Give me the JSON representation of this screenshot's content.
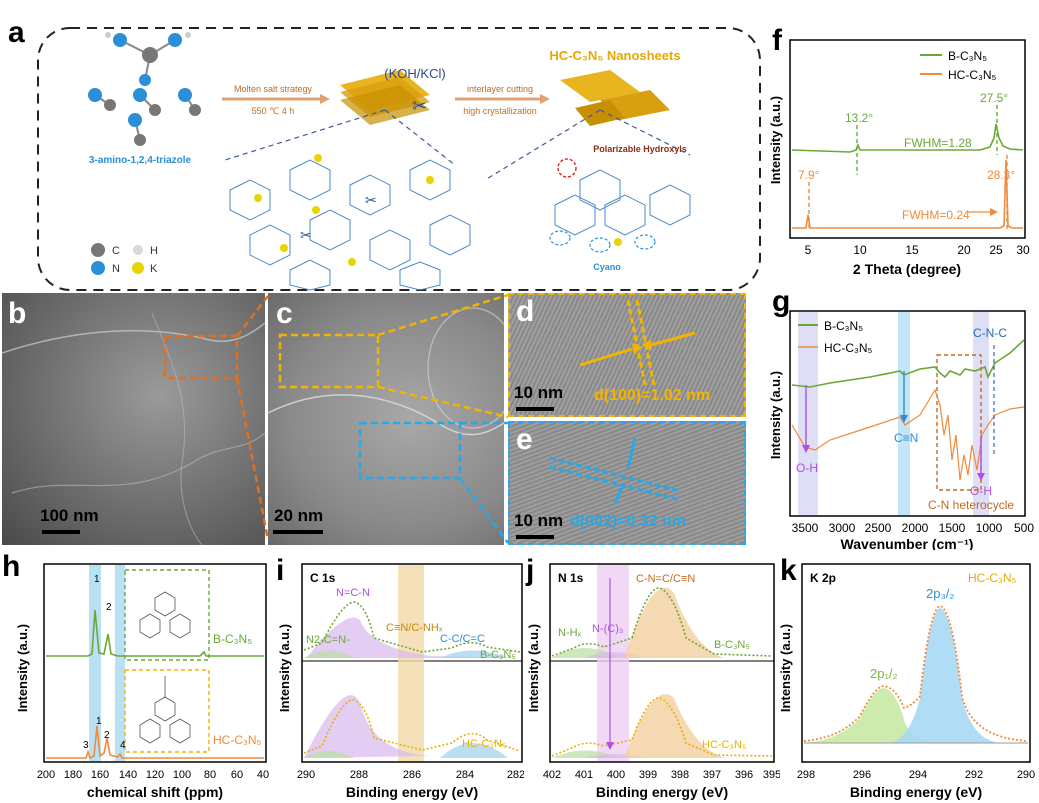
{
  "colors": {
    "green": "#6aa836",
    "orange": "#f08a3c",
    "blue": "#2a8fd6",
    "cyan": "#28a8e8",
    "purple": "#b150e0",
    "gold": "#e8b000",
    "brown": "#c46a1e",
    "yellow_box": "#f2b400"
  },
  "panel_a": {
    "label": "a",
    "precursor": "3-amino-1,2,4-triazole",
    "step1_top": "Molten salt strategy",
    "step1_bottom": "550 ℃ 4 h",
    "salt": "(KOH/KCl)",
    "step2_top": "interlayer cutting",
    "step2_bottom": "high crystallization",
    "product": "HC-C₃N₅ Nanosheets",
    "hydroxyl_label": "Polarizable Hydroxyls",
    "cyano_label": "Cyano",
    "legend": {
      "c": "C",
      "h": "H",
      "n": "N",
      "k": "K"
    }
  },
  "panel_f": {
    "label": "f",
    "legend": [
      "B-C₃N₅",
      "HC-C₃N₅"
    ],
    "xlabel": "2 Theta (degree)",
    "ylabel": "Intensity (a.u.)",
    "xticks": [
      "5",
      "10",
      "15",
      "20",
      "25",
      "30"
    ],
    "ann_b1": "13.2°",
    "ann_b2": "27.5°",
    "ann_b_fwhm": "FWHM=1.28",
    "ann_h1": "7.9°",
    "ann_h2": "28.3°",
    "ann_h_fwhm": "FWHM=0.24"
  },
  "panel_g": {
    "label": "g",
    "legend": [
      "B-C₃N₅",
      "HC-C₃N₅"
    ],
    "xlabel": "Wavenumber (cm⁻¹)",
    "ylabel": "Intensity (a.u.)",
    "xticks": [
      "3500",
      "3000",
      "2500",
      "2000",
      "1500",
      "1000",
      "500"
    ],
    "ann_oh1": "O-H",
    "ann_cn": "C≡N",
    "ann_hetero": "C-N heterocycle",
    "ann_oh2": "O-H",
    "ann_cnc": "C-N-C"
  },
  "panel_h": {
    "label": "h",
    "xlabel": "chemical shift (ppm)",
    "ylabel": "Intensity (a.u.)",
    "xticks": [
      "200",
      "180",
      "160",
      "140",
      "120",
      "100",
      "80",
      "60",
      "40"
    ],
    "b_label": "B-C₃N₅",
    "hc_label": "HC-C₃N₅",
    "peaks_b": [
      "1",
      "2"
    ],
    "peaks_hc": [
      "3",
      "1",
      "2",
      "4"
    ]
  },
  "panel_i": {
    "label": "i",
    "title": "C 1s",
    "xlabel": "Binding energy (eV)",
    "ylabel": "Intensity (a.u.)",
    "xticks": [
      "290",
      "288",
      "286",
      "284",
      "282"
    ],
    "ann_ncn": "N=C-N",
    "ann_n2cn": "N2-C=N-",
    "ann_cn": "C≡N/C-NHₓ",
    "ann_cc": "C-C/C=C",
    "b_label": "B-C₃N₅",
    "hc_label": "HC-C₃N₅"
  },
  "panel_j": {
    "label": "j",
    "title": "N 1s",
    "xlabel": "Binding energy (eV)",
    "ylabel": "Intensity (a.u.)",
    "xticks": [
      "402",
      "401",
      "400",
      "399",
      "398",
      "397",
      "396",
      "395"
    ],
    "ann_nh": "N-Hₓ",
    "ann_nc3": "N-(C)₃",
    "ann_cnc": "C-N=C/C≡N",
    "b_label": "B-C₃N₅",
    "hc_label": "HC-C₃N₅"
  },
  "panel_k": {
    "label": "k",
    "title": "K 2p",
    "sample": "HC-C₃N₅",
    "xlabel": "Binding energy (eV)",
    "ylabel": "Intensity (a.u.)",
    "xticks": [
      "298",
      "296",
      "294",
      "292",
      "290"
    ],
    "p12": "2p₁/₂",
    "p32": "2p₃/₂"
  },
  "tem": {
    "b_label": "b",
    "b_scale": "100 nm",
    "c_label": "c",
    "c_scale": "20 nm",
    "d_label": "d",
    "d_scale": "10 nm",
    "d_spacing": "d(100)=1.02 nm",
    "e_label": "e",
    "e_scale": "10 nm",
    "e_spacing": "d(002)=0.32 nm"
  }
}
